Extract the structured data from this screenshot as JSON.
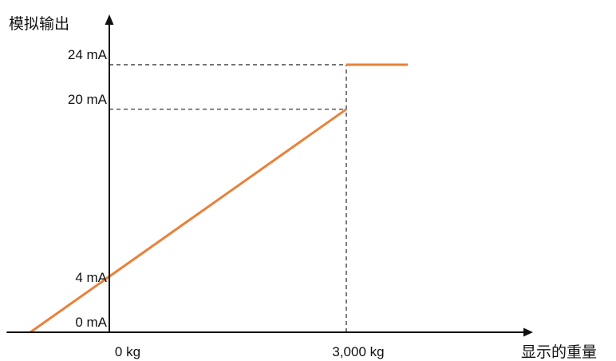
{
  "chart_data": {
    "type": "line",
    "ylabel": "模拟输出",
    "xlabel": "显示的重量",
    "x_ticks": [
      {
        "value": 0,
        "label": "0 kg"
      },
      {
        "value": 3000,
        "label": "3,000 kg"
      }
    ],
    "y_ticks": [
      {
        "value": 0,
        "label": "0 mA"
      },
      {
        "value": 4,
        "label": "4 mA"
      },
      {
        "value": 20,
        "label": "20 mA"
      },
      {
        "value": 24,
        "label": "24 mA"
      }
    ],
    "series": [
      {
        "color": "#e8823a",
        "segments": [
          {
            "x": [
              -1000,
              3000
            ],
            "y": [
              0,
              20
            ]
          },
          {
            "x": [
              3000,
              3780
            ],
            "y": [
              24,
              24
            ]
          }
        ]
      }
    ],
    "guides": [
      {
        "type": "horizontal",
        "y": 24,
        "x_from": 0,
        "x_to": 3000
      },
      {
        "type": "horizontal",
        "y": 20,
        "x_from": 0,
        "x_to": 3000
      },
      {
        "type": "vertical",
        "x": 3000,
        "y_from": 0,
        "y_to": 24
      }
    ],
    "xlim": [
      -1300,
      5300
    ],
    "ylim": [
      0,
      24
    ],
    "grid": false,
    "axes_color": "#111111",
    "guide_color": "#222222"
  }
}
